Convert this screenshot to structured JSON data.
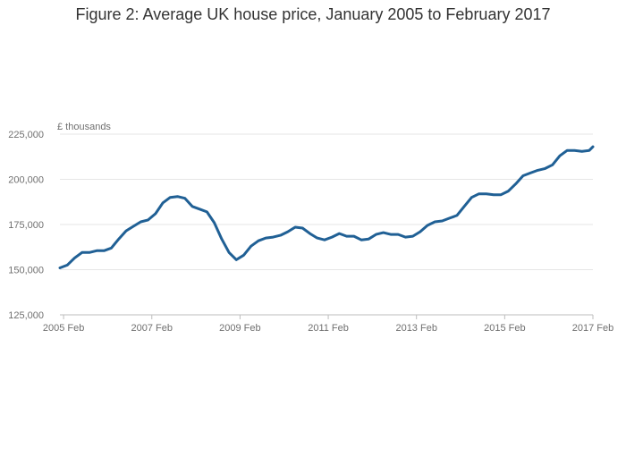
{
  "chart_data": {
    "type": "line",
    "title": "Figure 2: Average UK house price, January 2005 to February 2017",
    "xlabel": "",
    "ylabel": "£ thousands",
    "ylim": [
      125000,
      225000
    ],
    "y_ticks": [
      125000,
      150000,
      175000,
      200000,
      225000
    ],
    "y_tick_labels": [
      "125,000",
      "150,000",
      "175,000",
      "200,000",
      "225,000"
    ],
    "x_ticks": [
      "2005-02",
      "2007-02",
      "2009-02",
      "2011-02",
      "2013-02",
      "2015-02",
      "2017-02"
    ],
    "x_tick_labels": [
      "2005 Feb",
      "2007 Feb",
      "2009 Feb",
      "2011 Feb",
      "2013 Feb",
      "2015 Feb",
      "2017 Feb"
    ],
    "xlim": [
      "2005-01",
      "2017-02"
    ],
    "grid": "horizontal",
    "legend": "none",
    "line_color": "#206095",
    "series": [
      {
        "x": [
          "2005-01",
          "2005-03",
          "2005-05",
          "2005-07",
          "2005-09",
          "2005-11",
          "2006-01",
          "2006-03",
          "2006-05",
          "2006-07",
          "2006-09",
          "2006-11",
          "2007-01",
          "2007-03",
          "2007-05",
          "2007-07",
          "2007-09",
          "2007-11",
          "2008-01",
          "2008-03",
          "2008-05",
          "2008-07",
          "2008-09",
          "2008-11",
          "2009-01",
          "2009-03",
          "2009-05",
          "2009-07",
          "2009-09",
          "2009-11",
          "2010-01",
          "2010-03",
          "2010-05",
          "2010-07",
          "2010-09",
          "2010-11",
          "2011-01",
          "2011-03",
          "2011-05",
          "2011-07",
          "2011-09",
          "2011-11",
          "2012-01",
          "2012-03",
          "2012-05",
          "2012-07",
          "2012-09",
          "2012-11",
          "2013-01",
          "2013-03",
          "2013-05",
          "2013-07",
          "2013-09",
          "2013-11",
          "2014-01",
          "2014-03",
          "2014-05",
          "2014-07",
          "2014-09",
          "2014-11",
          "2015-01",
          "2015-03",
          "2015-05",
          "2015-07",
          "2015-09",
          "2015-11",
          "2016-01",
          "2016-03",
          "2016-05",
          "2016-07",
          "2016-09",
          "2016-11",
          "2017-01",
          "2017-02"
        ],
        "values": [
          151000,
          152500,
          156500,
          159500,
          159500,
          160500,
          160500,
          162000,
          167000,
          171500,
          174000,
          176500,
          177500,
          181000,
          187000,
          190000,
          190500,
          189500,
          185000,
          183500,
          182000,
          176000,
          167000,
          159500,
          155500,
          158000,
          163000,
          166000,
          167500,
          168000,
          169000,
          171000,
          173500,
          173000,
          170000,
          167500,
          166500,
          168000,
          170000,
          168500,
          168500,
          166500,
          167000,
          169500,
          170500,
          169500,
          169500,
          168000,
          168500,
          171000,
          174500,
          176500,
          177000,
          178500,
          180000,
          185000,
          190000,
          192000,
          192000,
          191500,
          191500,
          193500,
          197500,
          202000,
          203500,
          205000,
          206000,
          208000,
          213000,
          216000,
          216000,
          215500,
          216000,
          218000
        ]
      }
    ]
  }
}
